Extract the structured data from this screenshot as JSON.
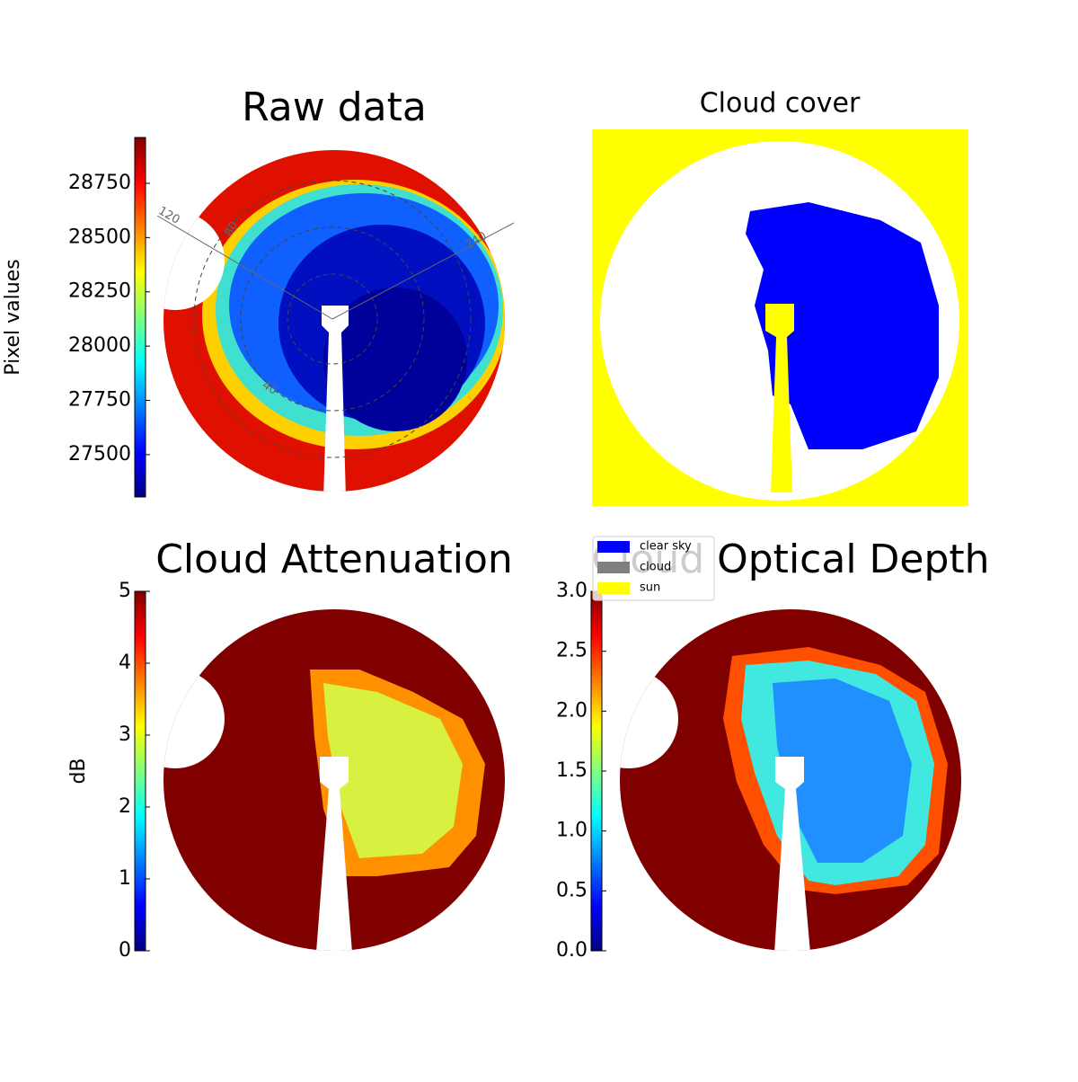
{
  "chart_data": [
    {
      "type": "image",
      "title": "Raw data",
      "colorbar_label": "Pixel values",
      "colormap": "jet",
      "clim": [
        27305,
        28961
      ],
      "yticks": [
        27500,
        27750,
        28000,
        28250,
        28500,
        28750
      ],
      "polar_labels": [
        "120",
        "80",
        "240",
        "40"
      ]
    },
    {
      "type": "image",
      "title": "Cloud cover",
      "legend": [
        {
          "name": "clear sky",
          "color": "#0000ff"
        },
        {
          "name": "cloud",
          "color": "#808080"
        },
        {
          "name": "sun",
          "color": "#ffff00"
        }
      ]
    },
    {
      "type": "image",
      "title": "Cloud Attenuation",
      "colorbar_label": "dB",
      "colormap": "jet",
      "clim": [
        0,
        5
      ],
      "yticks": [
        0,
        1,
        2,
        3,
        4,
        5
      ]
    },
    {
      "type": "image",
      "title": "Cloud Optical Depth",
      "colormap": "jet",
      "clim": [
        0,
        3
      ],
      "yticks": [
        {
          "value": 0,
          "label": "0.0"
        },
        {
          "value": 0.5,
          "label": "0.5"
        },
        {
          "value": 1,
          "label": "1.0"
        },
        {
          "value": 1.5,
          "label": "1.5"
        },
        {
          "value": 2,
          "label": "2.0"
        },
        {
          "value": 2.5,
          "label": "2.5"
        },
        {
          "value": 3,
          "label": "3.0"
        }
      ]
    }
  ]
}
